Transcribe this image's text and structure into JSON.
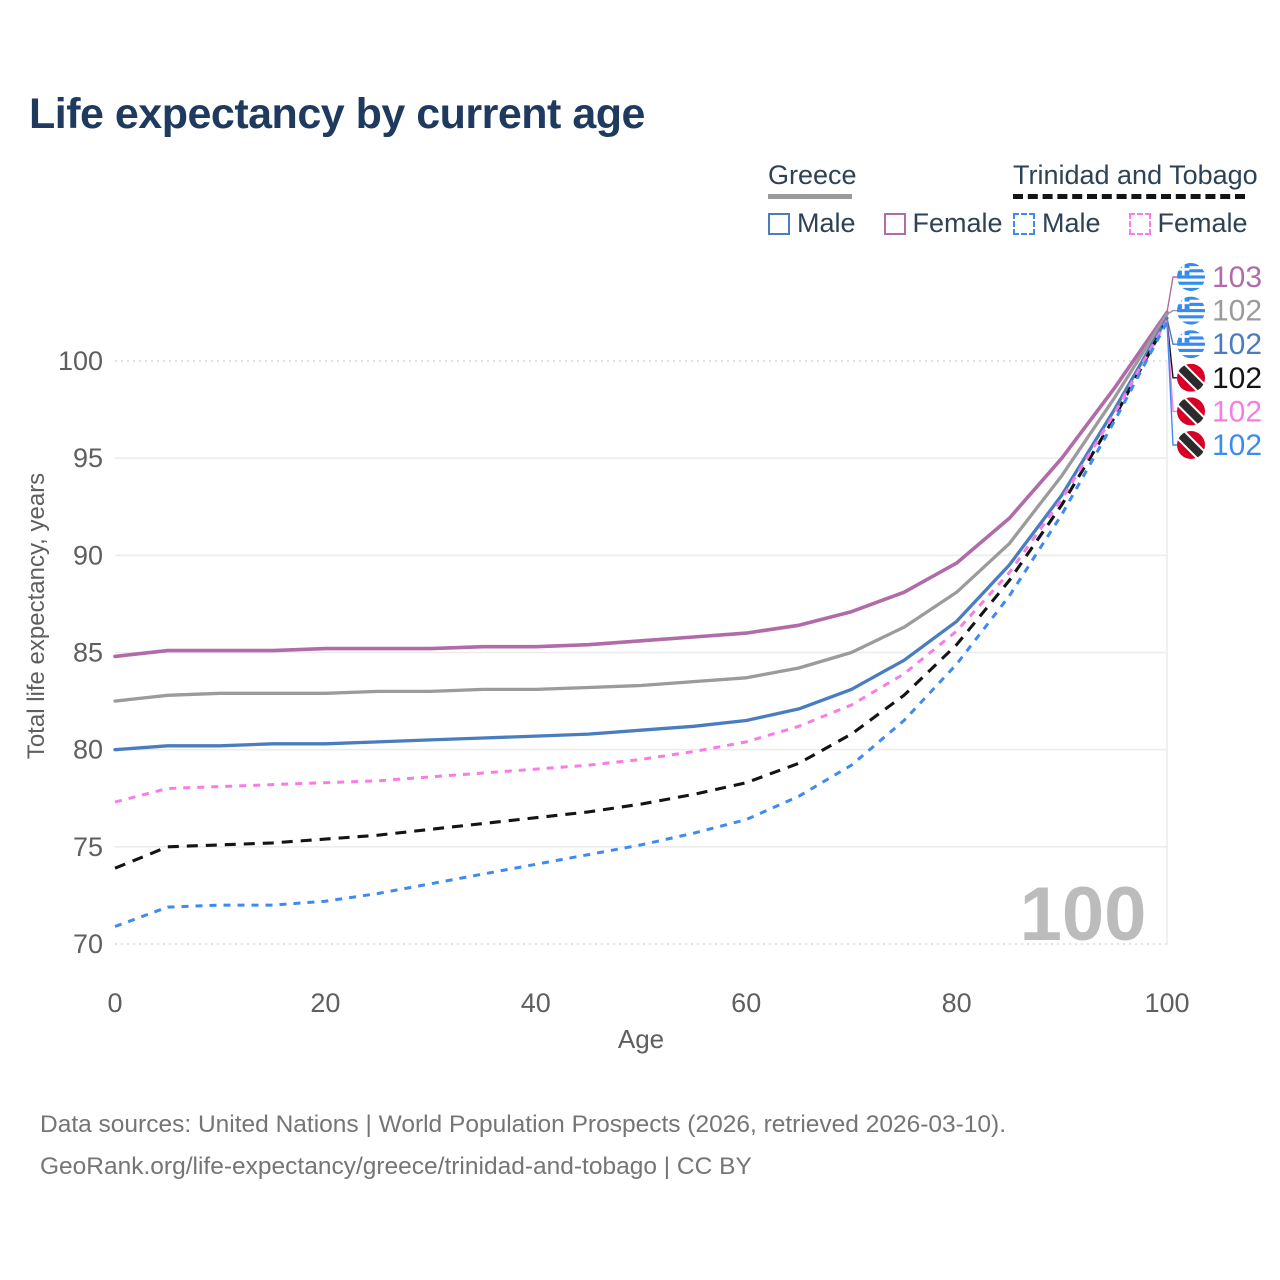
{
  "title": "Life expectancy by current age",
  "legend": {
    "groups": [
      {
        "label": "Greece",
        "underline_style": "solid",
        "underline_color": "#9b9b9b",
        "underline_width": 84,
        "items": [
          {
            "label": "Male",
            "color": "#4a7dc0",
            "dashed": false
          },
          {
            "label": "Female",
            "color": "#b16ba8",
            "dashed": false
          }
        ]
      },
      {
        "label": "Trinidad and Tobago",
        "underline_style": "dashed",
        "underline_color": "#141414",
        "underline_width": 232,
        "items": [
          {
            "label": "Male",
            "color": "#3d8bf2",
            "dashed": true
          },
          {
            "label": "Female",
            "color": "#f97ce3",
            "dashed": true
          }
        ]
      }
    ]
  },
  "watermark": "100",
  "footer": {
    "line1": "Data sources: United Nations | World Population Prospects (2026, retrieved 2026-03-10).",
    "line2": "GeoRank.org/life-expectancy/greece/trinidad-and-tobago | CC BY"
  },
  "chart_data": {
    "type": "line",
    "title": "Life expectancy by current age",
    "xlabel": "Age",
    "ylabel": "Total life expectancy, years",
    "x_ticks": [
      0,
      20,
      40,
      60,
      80,
      100
    ],
    "y_ticks": [
      70,
      75,
      80,
      85,
      90,
      95,
      100
    ],
    "y_ticks_dotted": [
      70,
      100
    ],
    "xlim": [
      0,
      100
    ],
    "ylim": [
      70,
      100
    ],
    "grid": true,
    "legend_position": "top-right",
    "ages": [
      0,
      5,
      10,
      15,
      20,
      25,
      30,
      35,
      40,
      45,
      50,
      55,
      60,
      65,
      70,
      75,
      80,
      85,
      90,
      95,
      100
    ],
    "series": [
      {
        "id": "greece-female",
        "name": "Greece Female",
        "country": "greece",
        "sex": "female",
        "color": "#b16ba8",
        "dash": "solid",
        "width": 3.6,
        "end_label": "103",
        "values": [
          84.8,
          85.1,
          85.1,
          85.1,
          85.2,
          85.2,
          85.2,
          85.3,
          85.3,
          85.4,
          85.6,
          85.8,
          86.0,
          86.4,
          87.1,
          88.1,
          89.6,
          91.9,
          95.0,
          98.6,
          102.5
        ]
      },
      {
        "id": "greece-total",
        "name": "Greece Both sexes",
        "country": "greece",
        "sex": "both",
        "color": "#9b9b9b",
        "dash": "solid",
        "width": 3.3,
        "end_label": "102",
        "values": [
          82.5,
          82.8,
          82.9,
          82.9,
          82.9,
          83.0,
          83.0,
          83.1,
          83.1,
          83.2,
          83.3,
          83.5,
          83.7,
          84.2,
          85.0,
          86.3,
          88.1,
          90.6,
          94.1,
          98.1,
          102.4
        ]
      },
      {
        "id": "greece-male",
        "name": "Greece Male",
        "country": "greece",
        "sex": "male",
        "color": "#4a7dc0",
        "dash": "solid",
        "width": 3.3,
        "end_label": "102",
        "values": [
          80.0,
          80.2,
          80.2,
          80.3,
          80.3,
          80.4,
          80.5,
          80.6,
          80.7,
          80.8,
          81.0,
          81.2,
          81.5,
          82.1,
          83.1,
          84.6,
          86.6,
          89.5,
          93.1,
          97.5,
          102.2
        ]
      },
      {
        "id": "trinidad-and-tobago-total",
        "name": "Trinidad and Tobago Both sexes",
        "country": "trinidad-and-tobago",
        "sex": "both",
        "color": "#141414",
        "dash": "11 8",
        "width": 3.1,
        "end_label": "102",
        "values": [
          73.9,
          75.0,
          75.1,
          75.2,
          75.4,
          75.6,
          75.9,
          76.2,
          76.5,
          76.8,
          77.2,
          77.7,
          78.3,
          79.3,
          80.8,
          82.8,
          85.4,
          88.7,
          92.6,
          97.1,
          102.1
        ]
      },
      {
        "id": "trinidad-and-tobago-female",
        "name": "Trinidad and Tobago Female",
        "country": "trinidad-and-tobago",
        "sex": "female",
        "color": "#f97ce3",
        "dash": "7 7",
        "width": 3.0,
        "end_label": "102",
        "values": [
          77.3,
          78.0,
          78.1,
          78.2,
          78.3,
          78.4,
          78.6,
          78.8,
          79.0,
          79.2,
          79.5,
          79.9,
          80.4,
          81.2,
          82.3,
          83.9,
          86.1,
          89.1,
          92.9,
          97.3,
          102.1
        ]
      },
      {
        "id": "trinidad-and-tobago-male",
        "name": "Trinidad and Tobago Male",
        "country": "trinidad-and-tobago",
        "sex": "male",
        "color": "#3d8bf2",
        "dash": "7 7",
        "width": 3.0,
        "end_label": "102",
        "values": [
          70.9,
          71.9,
          72.0,
          72.0,
          72.2,
          72.6,
          73.1,
          73.6,
          74.1,
          74.6,
          75.1,
          75.7,
          76.4,
          77.6,
          79.2,
          81.5,
          84.4,
          87.9,
          92.1,
          96.9,
          102.0
        ]
      }
    ],
    "end_label_order": [
      "greece-female",
      "greece-total",
      "greece-male",
      "trinidad-and-tobago-total",
      "trinidad-and-tobago-female",
      "trinidad-and-tobago-male"
    ]
  }
}
